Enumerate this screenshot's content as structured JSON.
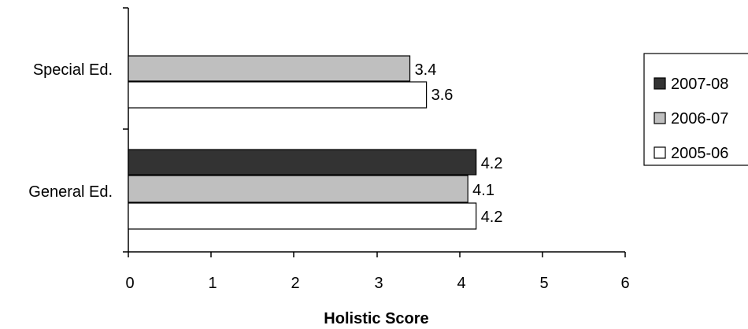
{
  "chart_data": {
    "type": "bar",
    "orientation": "horizontal",
    "categories": [
      "Special Ed.",
      "General Ed."
    ],
    "series": [
      {
        "name": "2007-08",
        "values": [
          null,
          4.2
        ],
        "color": "#333333"
      },
      {
        "name": "2006-07",
        "values": [
          3.4,
          4.1
        ],
        "color": "#bfbfbf"
      },
      {
        "name": "2005-06",
        "values": [
          3.6,
          4.2
        ],
        "color": "#ffffff"
      }
    ],
    "data_labels": {
      "special_2006": "3.4",
      "special_2005": "3.6",
      "general_2007": "4.2",
      "general_2006": "4.1",
      "general_2005": "4.2"
    },
    "x_ticks": [
      "0",
      "1",
      "2",
      "3",
      "4",
      "5",
      "6"
    ],
    "xlim": [
      0,
      6
    ],
    "xlabel": "Holistic Score",
    "ylabel": "",
    "title": "",
    "grid": false,
    "legend_position": "right"
  }
}
